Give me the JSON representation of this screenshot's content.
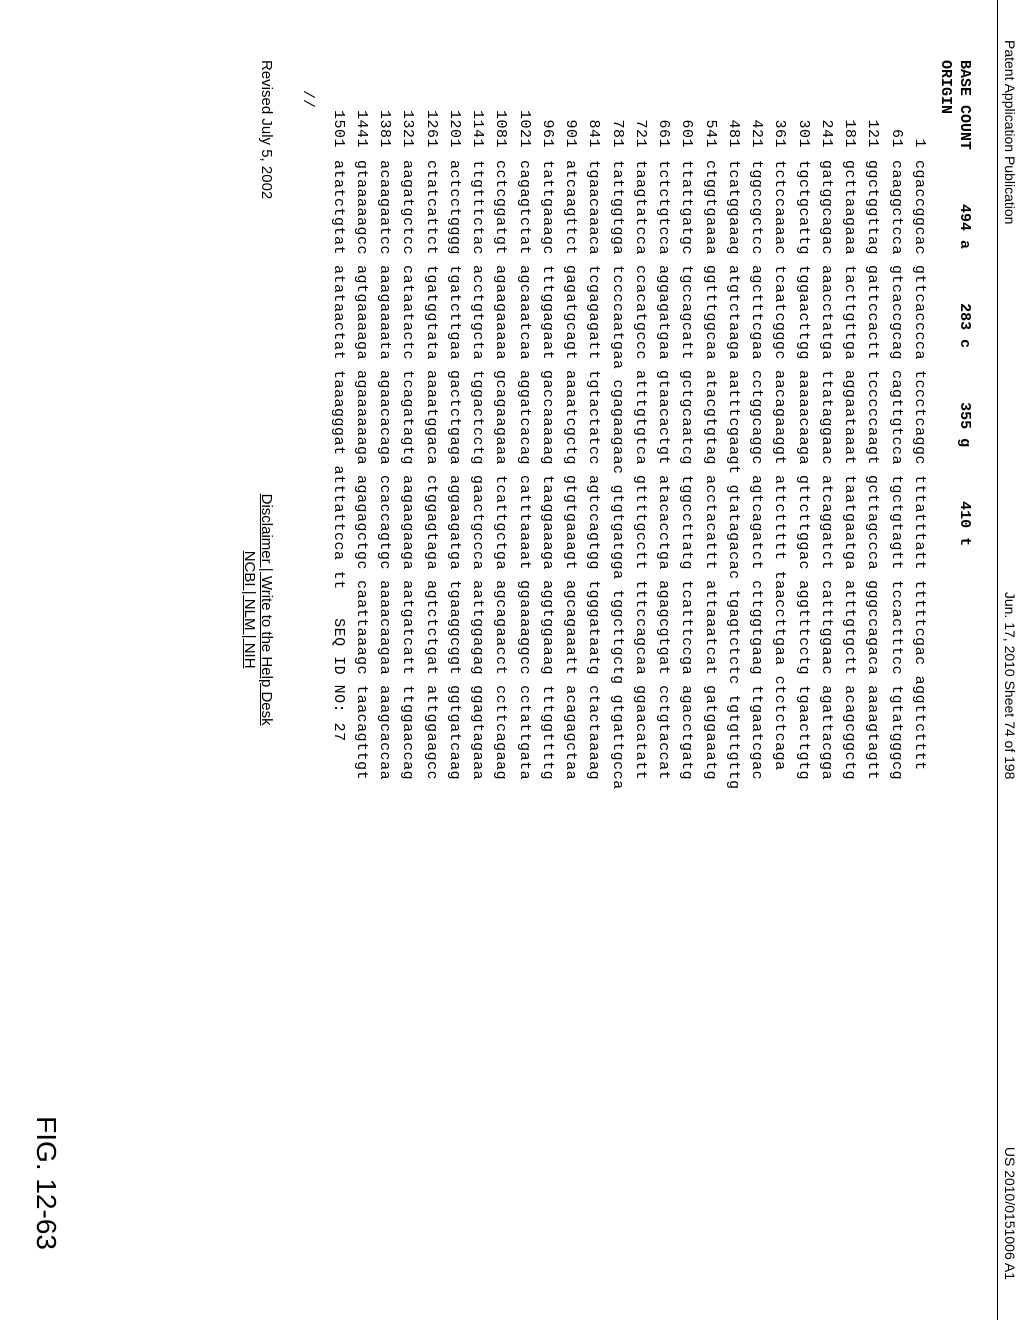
{
  "header": {
    "left": "Patent Application Publication",
    "center": "Jun. 17, 2010  Sheet 74 of 198",
    "right": "US 2010/0151006 A1"
  },
  "base_count": {
    "label": "BASE COUNT",
    "a": "494 a",
    "c": "283 c",
    "g": "355 g",
    "t": "410 t"
  },
  "origin_label": "ORIGIN",
  "sequence": [
    {
      "i": "1",
      "b": [
        "cgaccggcac",
        "gttcacccca",
        "tccctcaggc",
        "tttatttatt",
        "tttttcgac",
        "aggttctttt"
      ]
    },
    {
      "i": "61",
      "b": [
        "caaggctcca",
        "gtcaccgcag",
        "cagttgtcca",
        "tgctgtagtt",
        "tccactttcc",
        "tgtatgggcg"
      ]
    },
    {
      "i": "121",
      "b": [
        "ggctggttag",
        "gattccactt",
        "tcccccaagt",
        "gcttagccca",
        "gggccagaca",
        "aaaagtagtt"
      ]
    },
    {
      "i": "181",
      "b": [
        "gcttaagaaa",
        "tacttgttga",
        "aggaataaat",
        "taatgaatga",
        "atttgtgctt",
        "acagcggctg"
      ]
    },
    {
      "i": "241",
      "b": [
        "gatggcagac",
        "aaacctatga",
        "ttataggaac",
        "atcaggatct",
        "catttggaac",
        "agattacgga"
      ]
    },
    {
      "i": "301",
      "b": [
        "tgctgcattg",
        "tggaacttgg",
        "aaaaacaaga",
        "gttcttggac",
        "aggtttcctg",
        "tgaacttgtg"
      ]
    },
    {
      "i": "361",
      "b": [
        "tctccaaaac",
        "tcaatcgggc",
        "aacagaaggt",
        "attcttttt",
        "taaccttgaa",
        "ctctctcaga"
      ]
    },
    {
      "i": "421",
      "b": [
        "tggccgctcc",
        "agctttcgaa",
        "cctggcaggc",
        "agtcagatct",
        "cttggtgaag",
        "ttgaatcgac"
      ]
    },
    {
      "i": "481",
      "b": [
        "tcatggaaag",
        "atgtctaaga",
        "aatttcgaagt",
        "gtatagacac",
        "tgagtctctc",
        "tgtgttgttg"
      ]
    },
    {
      "i": "541",
      "b": [
        "ctggtgaaaa",
        "ggtttggcaa",
        "atacgtgtag",
        "acctacattt",
        "attaaatcat",
        "gatggaaatg"
      ]
    },
    {
      "i": "601",
      "b": [
        "ttattgatgc",
        "tgccagcatt",
        "gctgcaatcg",
        "tggccttatg",
        "tcatttccga",
        "agacctgatg"
      ]
    },
    {
      "i": "661",
      "b": [
        "tctctgtcca",
        "aggagatgaa",
        "gtaacactgt",
        "atacacctga",
        "agagcgtgat",
        "cctgtaccat"
      ]
    },
    {
      "i": "721",
      "b": [
        "taagtatcca",
        "ccacatgccc",
        "atttgtgtca",
        "gttttgcctt",
        "tttccagcaa",
        "ggaacatatt"
      ]
    },
    {
      "i": "781",
      "b": [
        "tattggtgga",
        "tccccaatgaa",
        "cgagaagaac",
        "gtgtgatgga",
        "tggcttgctg",
        "gtgattgcca"
      ]
    },
    {
      "i": "841",
      "b": [
        "tgaacaaaca",
        "tcgagagatt",
        "tgtactatcc",
        "agtccagtgg",
        "tgggataatg",
        "ctactaaaag"
      ]
    },
    {
      "i": "901",
      "b": [
        "atcaagttct",
        "gagatgcagt",
        "aaaatcgctg",
        "gtgtgaaagt",
        "agcagaaatt",
        "acagagctaa"
      ]
    },
    {
      "i": "961",
      "b": [
        "tattgaaagc",
        "tttggagaat",
        "gaccaaaaag",
        "taaggaaaga",
        "aggtggaaag",
        "tttggttttg"
      ]
    },
    {
      "i": "1021",
      "b": [
        "cagagtctat",
        "agcaaatcaa",
        "aggatcacag",
        "catttaaaat",
        "ggaaaaggcc",
        "cctattgata"
      ]
    },
    {
      "i": "1081",
      "b": [
        "cctcggatgt",
        "agaagaaaaa",
        "gcagaagaaa",
        "tcattgctga",
        "agcagaacct",
        "ccttcagaag"
      ]
    },
    {
      "i": "1141",
      "b": [
        "ttgtttctac",
        "acctgtgcta",
        "tggactcctg",
        "gaactgccca",
        "aattggagag",
        "ggagtagaaa"
      ]
    },
    {
      "i": "1201",
      "b": [
        "actcctgggg",
        "tgatcttgaa",
        "gactctgaga",
        "aggaagatga",
        "tgaaggcggt",
        "ggtgatcaag"
      ]
    },
    {
      "i": "1261",
      "b": [
        "ctatcattct",
        "tgatggtata",
        "aaaatggaca",
        "ctggagtaga",
        "agtctctgat",
        "attggaagcc"
      ]
    },
    {
      "i": "1321",
      "b": [
        "aagatgctcc",
        "cataatactc",
        "tcagatagtg",
        "aagaagaaga",
        "aatgatcatt",
        "ttggaaccag"
      ]
    },
    {
      "i": "1381",
      "b": [
        "acaagaatcc",
        "aaagaaaata",
        "agaacacaga",
        "ccaccagtgc",
        "aaaacaagaa",
        "aaagcaccaa"
      ]
    },
    {
      "i": "1441",
      "b": [
        "gtaaaaagcc",
        "agtgaaaaga",
        "agaaaaaaga",
        "agagagctgc",
        "caattaaagc",
        "taacagttgt"
      ]
    },
    {
      "i": "1501",
      "b": [
        "atatctgtat",
        "atataactat",
        "taaagggat",
        "atttattcca",
        "tt   SEQ ID NO: 27",
        ""
      ]
    }
  ],
  "slashes": "//",
  "revised": "Revised July 5, 2002",
  "links_line1": "Disclaimer | Write to the Help Desk",
  "links_line2": "NCBI | NLM | NIH",
  "figure_label": "FIG. 12-63"
}
